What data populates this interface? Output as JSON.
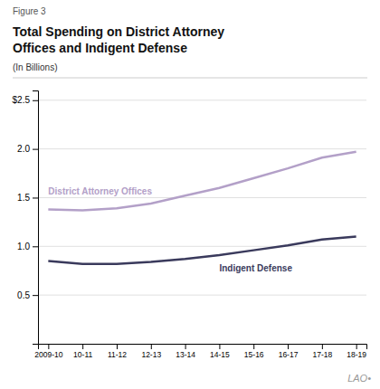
{
  "chart_data": {
    "type": "line",
    "title": "Total Spending on District Attorney\nOffices and Indigent Defense",
    "subtitle": "(In Billions)",
    "annotations": [
      "Figure 3",
      "LAO•"
    ],
    "categories": [
      "2009-10",
      "10-11",
      "11-12",
      "12-13",
      "13-14",
      "14-15",
      "15-16",
      "16-17",
      "17-18",
      "18-19"
    ],
    "series": [
      {
        "name": "District Attorney Offices",
        "color": "#b3a0c8",
        "values": [
          1.38,
          1.37,
          1.39,
          1.44,
          1.52,
          1.6,
          1.7,
          1.8,
          1.91,
          1.97
        ]
      },
      {
        "name": "Indigent Defense",
        "color": "#3a3a5c",
        "values": [
          0.85,
          0.82,
          0.82,
          0.84,
          0.87,
          0.91,
          0.96,
          1.01,
          1.07,
          1.1
        ]
      }
    ],
    "ylim": [
      0,
      2.6
    ],
    "yticks": [
      0.5,
      {
        "value": 1.0,
        "label": "1.0"
      },
      1.5,
      {
        "value": 2.0,
        "label": "2.0"
      },
      {
        "value": 2.5,
        "label": "$2.5"
      }
    ],
    "grid": true
  }
}
